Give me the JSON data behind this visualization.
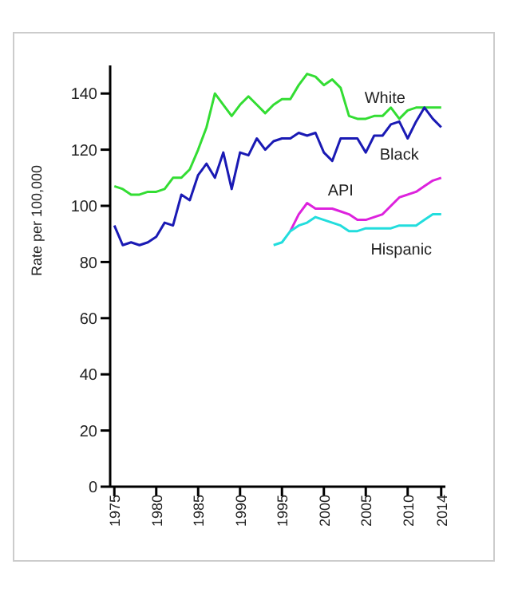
{
  "chart_data": {
    "type": "line",
    "ylabel": "Rate per 100,000",
    "x": [
      1975,
      1976,
      1977,
      1978,
      1979,
      1980,
      1981,
      1982,
      1983,
      1984,
      1985,
      1986,
      1987,
      1988,
      1989,
      1990,
      1991,
      1992,
      1993,
      1994,
      1995,
      1996,
      1997,
      1998,
      1999,
      2000,
      2001,
      2002,
      2003,
      2004,
      2005,
      2006,
      2007,
      2008,
      2009,
      2010,
      2011,
      2012,
      2013,
      2014
    ],
    "series": [
      {
        "name": "White",
        "color": "#33dd33",
        "values": [
          107,
          106,
          104,
          104,
          105,
          105,
          106,
          110,
          110,
          113,
          120,
          128,
          140,
          136,
          132,
          136,
          139,
          136,
          133,
          136,
          138,
          138,
          143,
          147,
          146,
          143,
          145,
          142,
          132,
          131,
          131,
          132,
          132,
          135,
          131,
          134,
          135,
          135,
          135,
          135
        ]
      },
      {
        "name": "Black",
        "color": "#1a1ab4",
        "values": [
          93,
          86,
          87,
          86,
          87,
          89,
          94,
          93,
          104,
          102,
          111,
          115,
          110,
          119,
          106,
          119,
          118,
          124,
          120,
          123,
          124,
          124,
          126,
          125,
          126,
          119,
          116,
          124,
          124,
          124,
          119,
          125,
          125,
          129,
          130,
          124,
          130,
          135,
          131,
          128
        ]
      },
      {
        "name": "API",
        "color": "#dd22dd",
        "values": [
          null,
          null,
          null,
          null,
          null,
          null,
          null,
          null,
          null,
          null,
          null,
          null,
          null,
          null,
          null,
          null,
          null,
          null,
          null,
          null,
          null,
          91,
          97,
          101,
          99,
          99,
          99,
          98,
          97,
          95,
          95,
          96,
          97,
          100,
          103,
          104,
          105,
          107,
          109,
          110
        ]
      },
      {
        "name": "Hispanic",
        "color": "#22dddd",
        "values": [
          null,
          null,
          null,
          null,
          null,
          null,
          null,
          null,
          null,
          null,
          null,
          null,
          null,
          null,
          null,
          null,
          null,
          null,
          null,
          86,
          87,
          91,
          93,
          94,
          96,
          95,
          94,
          93,
          91,
          91,
          92,
          92,
          92,
          92,
          93,
          93,
          93,
          95,
          97,
          97
        ]
      }
    ],
    "xlim": [
      1974.5,
      2014.5
    ],
    "xticks": [
      1975,
      1980,
      1985,
      1990,
      1995,
      2000,
      2005,
      2010,
      2014
    ],
    "ylim": [
      0,
      150
    ],
    "yticks": [
      0,
      20,
      40,
      60,
      80,
      100,
      120,
      140
    ],
    "marker": "none",
    "line_style": "solid"
  }
}
